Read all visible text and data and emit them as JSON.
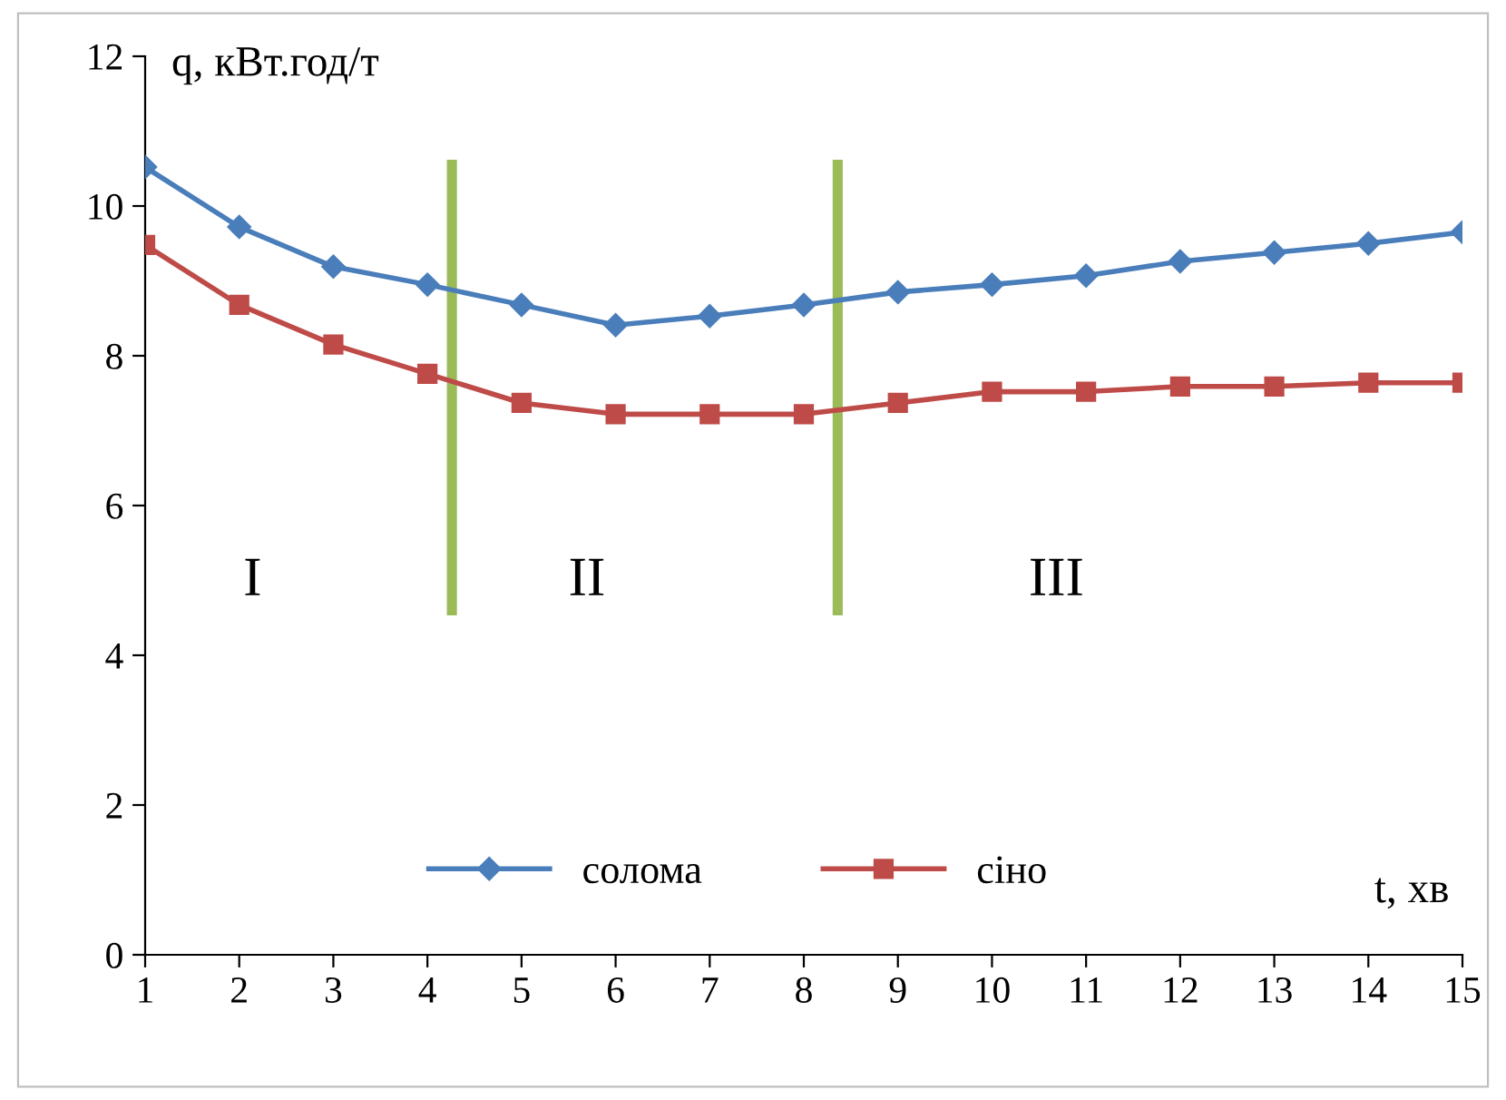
{
  "chart_data": {
    "type": "line",
    "xlabel": "t, хв",
    "ylabel": "q, кВт.год/т",
    "x": [
      1,
      2,
      3,
      4,
      5,
      6,
      7,
      8,
      9,
      10,
      11,
      12,
      13,
      14,
      15
    ],
    "series": [
      {
        "name": "солома",
        "color": "#4a7ebb",
        "marker": "diamond",
        "values": [
          10.52,
          9.72,
          9.19,
          8.95,
          8.68,
          8.41,
          8.53,
          8.68,
          8.85,
          8.95,
          9.07,
          9.26,
          9.38,
          9.5,
          9.65
        ]
      },
      {
        "name": "сіно",
        "color": "#be4b48",
        "marker": "square",
        "values": [
          9.48,
          8.68,
          8.15,
          7.76,
          7.37,
          7.22,
          7.22,
          7.22,
          7.37,
          7.52,
          7.52,
          7.59,
          7.59,
          7.64,
          7.64
        ]
      }
    ],
    "xlim": [
      1,
      15
    ],
    "xticks": [
      1,
      2,
      3,
      4,
      5,
      6,
      7,
      8,
      9,
      10,
      11,
      12,
      13,
      14,
      15
    ],
    "ylim": [
      0,
      12
    ],
    "yticks": [
      0,
      2,
      4,
      6,
      8,
      10,
      12
    ],
    "ref_lines": [
      {
        "axis": "x",
        "value": 4.26,
        "color": "#9bbb59"
      },
      {
        "axis": "x",
        "value": 8.36,
        "color": "#9bbb59"
      }
    ],
    "annotations": [
      "I",
      "II",
      "III"
    ],
    "legend": "bottom",
    "grid": false,
    "line_style": "solid"
  }
}
